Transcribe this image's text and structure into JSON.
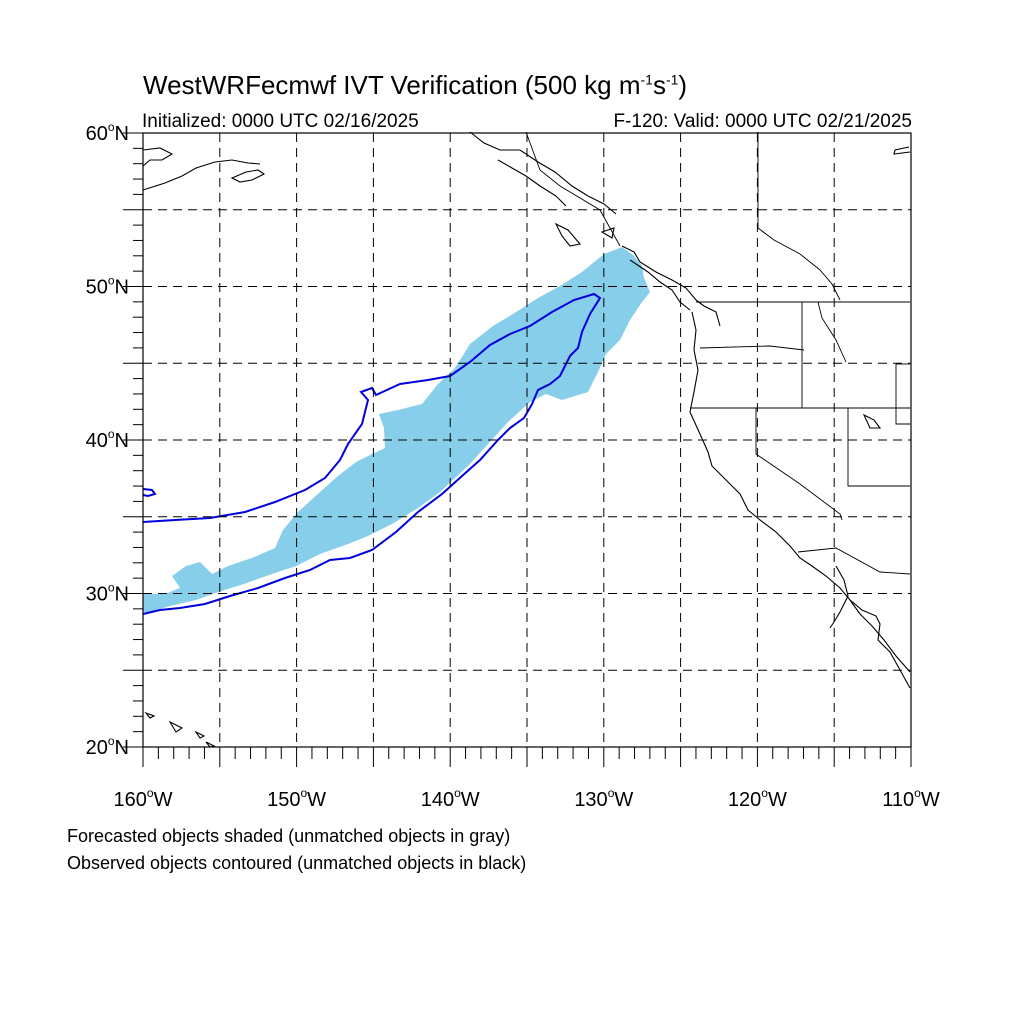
{
  "title": {
    "main": "WestWRFecmwf IVT Verification (500 kg m",
    "sup1": "-1",
    "mid": "s",
    "sup2": "-1",
    "end": ")"
  },
  "initialized": "Initialized: 0000 UTC 02/16/2025",
  "valid": "F-120: Valid: 0000 UTC 02/21/2025",
  "notes": [
    "Forecasted objects shaded (unmatched objects in gray)",
    "Observed objects contoured (unmatched objects in black)"
  ],
  "map": {
    "lon_range": [
      -160,
      -110
    ],
    "lat_range": [
      20,
      60
    ],
    "lat_labels": [
      "20",
      "30",
      "40",
      "50",
      "60"
    ],
    "lon_labels": [
      "160",
      "150",
      "140",
      "130",
      "120",
      "110"
    ],
    "deg_symbol": "o",
    "lat_hemisphere": "N",
    "lon_hemisphere": "W",
    "gridlines": "dashed",
    "forecast_object_color": "#87ceeb",
    "observed_object_color": "#0000dd"
  }
}
